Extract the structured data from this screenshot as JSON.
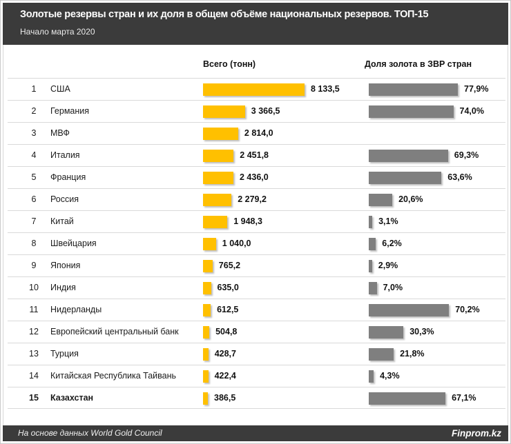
{
  "header": {
    "title": "Золотые резервы стран  и их доля в общем объёме национальных резервов. ТОП-15",
    "subtitle": "Начало марта  2020"
  },
  "columns": {
    "tonnes": "Всего (тонн)",
    "share": "Доля золота в ЗВР стран"
  },
  "footer": {
    "source": "На основе данных  World Gold Council",
    "brand": "Finprom.kz"
  },
  "colors": {
    "header_bg": "#3B3B3B",
    "bar_tonnes": "#FFC000",
    "bar_share": "#7F7F7F",
    "separator": "#D9D9D9",
    "title_text": "#FFFFFF"
  },
  "chart_data": {
    "type": "bar",
    "orientation": "horizontal",
    "title": "Золотые резервы стран  и их доля в общем объёме национальных резервов. ТОП-15",
    "subtitle": "Начало марта 2020",
    "grid": false,
    "legend_position": "none",
    "highlight_category": "Казахстан",
    "categories": [
      "США",
      "Германия",
      "МВФ",
      "Италия",
      "Франция",
      "Россия",
      "Китай",
      "Швейцария",
      "Япония",
      "Индия",
      "Нидерланды",
      "Европейский центральный банк",
      "Турция",
      "Китайская Республика Тайвань",
      "Казахстан"
    ],
    "ranks": [
      "1",
      "2",
      "3",
      "4",
      "5",
      "6",
      "7",
      "8",
      "9",
      "10",
      "11",
      "12",
      "13",
      "14",
      "15"
    ],
    "series": [
      {
        "name": "Всего (тонн)",
        "color": "#FFC000",
        "axis_max": 8133.5,
        "values": [
          8133.5,
          3366.5,
          2814.0,
          2451.8,
          2436.0,
          2279.2,
          1948.3,
          1040.0,
          765.2,
          635.0,
          612.5,
          504.8,
          428.7,
          422.4,
          386.5
        ],
        "labels": [
          "8 133,5",
          "3 366,5",
          "2 814,0",
          "2 451,8",
          "2 436,0",
          "2 279,2",
          "1 948,3",
          "1 040,0",
          "765,2",
          "635,0",
          "612,5",
          "504,8",
          "428,7",
          "422,4",
          "386,5"
        ]
      },
      {
        "name": "Доля золота в ЗВР стран",
        "unit": "%",
        "color": "#7F7F7F",
        "axis_max": 77.9,
        "values": [
          77.9,
          74.0,
          null,
          69.3,
          63.6,
          20.6,
          3.1,
          6.2,
          2.9,
          7.0,
          70.2,
          30.3,
          21.8,
          4.3,
          67.1
        ],
        "labels": [
          "77,9%",
          "74,0%",
          "",
          "69,3%",
          "63,6%",
          "20,6%",
          "3,1%",
          "6,2%",
          "2,9%",
          "7,0%",
          "70,2%",
          "30,3%",
          "21,8%",
          "4,3%",
          "67,1%"
        ]
      }
    ],
    "source": "На основе данных World Gold Council",
    "brand": "Finprom.kz"
  }
}
